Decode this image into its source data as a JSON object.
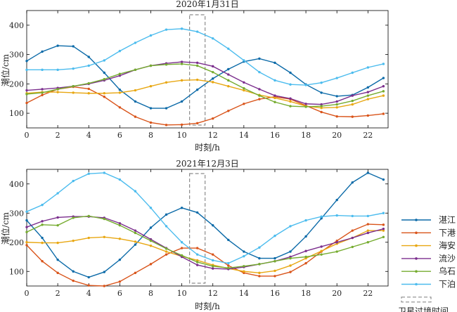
{
  "satellite_label": "卫星过境时间",
  "chart_data": [
    {
      "type": "line",
      "title": "2020年1月31日",
      "xlabel": "时刻/h",
      "ylabel": "潮位/cm",
      "xlim": [
        0,
        23.3
      ],
      "ylim": [
        50,
        450
      ],
      "xticks": [
        0,
        2,
        4,
        6,
        8,
        10,
        12,
        14,
        16,
        18,
        20,
        22
      ],
      "yticks": [
        100,
        200,
        300,
        400
      ],
      "satellite_window": [
        10.5,
        11.5
      ],
      "x": [
        0,
        1,
        2,
        3,
        4,
        5,
        6,
        7,
        8,
        9,
        10,
        11,
        12,
        13,
        14,
        15,
        16,
        17,
        18,
        19,
        20,
        21,
        22,
        23
      ],
      "series": [
        {
          "name": "湛江",
          "color": "#0b6aa8",
          "values": [
            278,
            310,
            330,
            328,
            292,
            238,
            180,
            140,
            117,
            117,
            140,
            180,
            218,
            250,
            276,
            286,
            272,
            238,
            198,
            170,
            158,
            162,
            188,
            220
          ]
        },
        {
          "name": "下港",
          "color": "#d9541a",
          "values": [
            135,
            162,
            182,
            190,
            183,
            156,
            120,
            88,
            68,
            60,
            61,
            66,
            82,
            108,
            132,
            148,
            156,
            148,
            126,
            104,
            89,
            88,
            92,
            98
          ]
        },
        {
          "name": "海安",
          "color": "#e8a712",
          "values": [
            168,
            172,
            172,
            170,
            168,
            168,
            170,
            178,
            192,
            205,
            212,
            214,
            206,
            192,
            178,
            162,
            152,
            140,
            124,
            118,
            120,
            130,
            148,
            160
          ]
        },
        {
          "name": "流沙",
          "color": "#7b2e8d",
          "values": [
            178,
            182,
            186,
            192,
            200,
            212,
            228,
            248,
            262,
            270,
            275,
            272,
            260,
            232,
            205,
            182,
            160,
            150,
            132,
            130,
            140,
            160,
            172,
            192
          ]
        },
        {
          "name": "乌石",
          "color": "#76ac30",
          "values": [
            165,
            170,
            182,
            192,
            202,
            216,
            234,
            248,
            262,
            266,
            268,
            262,
            240,
            212,
            185,
            160,
            138,
            124,
            122,
            124,
            130,
            142,
            160,
            175
          ]
        },
        {
          "name": "下泊",
          "color": "#4cbcee",
          "values": [
            248,
            248,
            248,
            252,
            262,
            280,
            312,
            340,
            365,
            385,
            388,
            378,
            355,
            320,
            280,
            240,
            212,
            198,
            196,
            204,
            220,
            238,
            256,
            268
          ]
        }
      ]
    },
    {
      "type": "line",
      "title": "2021年12月3日",
      "xlabel": "时刻/h",
      "ylabel": "潮位/cm",
      "xlim": [
        0,
        23.3
      ],
      "ylim": [
        50,
        450
      ],
      "xticks": [
        0,
        2,
        4,
        6,
        8,
        10,
        12,
        14,
        16,
        18,
        20,
        22
      ],
      "yticks": [
        100,
        200,
        300,
        400
      ],
      "satellite_window": [
        10.5,
        11.5
      ],
      "x": [
        0,
        1,
        2,
        3,
        4,
        5,
        6,
        7,
        8,
        9,
        10,
        11,
        12,
        13,
        14,
        15,
        16,
        17,
        18,
        19,
        20,
        21,
        22,
        23
      ],
      "series": [
        {
          "name": "湛江",
          "color": "#0b6aa8",
          "values": [
            275,
            215,
            140,
            100,
            80,
            98,
            140,
            192,
            250,
            295,
            318,
            302,
            258,
            208,
            168,
            145,
            145,
            168,
            220,
            282,
            345,
            405,
            438,
            415
          ]
        },
        {
          "name": "下港",
          "color": "#d9541a",
          "values": [
            190,
            135,
            95,
            68,
            52,
            50,
            65,
            95,
            125,
            158,
            180,
            180,
            158,
            120,
            95,
            84,
            84,
            98,
            128,
            168,
            205,
            240,
            262,
            260
          ]
        },
        {
          "name": "海安",
          "color": "#e8a712",
          "values": [
            200,
            198,
            198,
            205,
            215,
            218,
            212,
            202,
            188,
            168,
            152,
            138,
            122,
            110,
            100,
            95,
            102,
            120,
            145,
            170,
            195,
            215,
            240,
            240
          ]
        },
        {
          "name": "流沙",
          "color": "#7b2e8d",
          "values": [
            252,
            272,
            285,
            288,
            288,
            284,
            265,
            240,
            210,
            180,
            150,
            122,
            110,
            108,
            115,
            125,
            135,
            150,
            170,
            185,
            200,
            215,
            232,
            246
          ]
        },
        {
          "name": "乌石",
          "color": "#76ac30",
          "values": [
            235,
            260,
            258,
            284,
            290,
            280,
            258,
            232,
            205,
            178,
            155,
            132,
            118,
            112,
            118,
            125,
            135,
            145,
            150,
            158,
            168,
            184,
            200,
            218
          ]
        },
        {
          "name": "下泊",
          "color": "#4cbcee",
          "values": [
            305,
            328,
            368,
            410,
            435,
            438,
            415,
            375,
            318,
            255,
            200,
            158,
            138,
            128,
            152,
            182,
            222,
            255,
            275,
            288,
            292,
            290,
            290,
            300
          ]
        }
      ]
    }
  ]
}
